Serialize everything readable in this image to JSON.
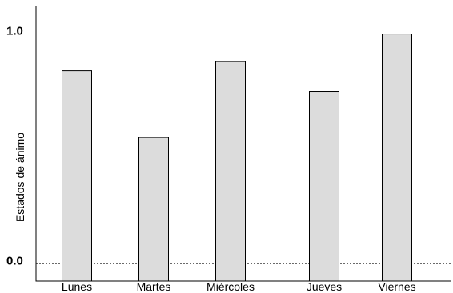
{
  "chart_data": {
    "type": "bar",
    "categories": [
      "Lunes",
      "Martes",
      "Miércoles",
      "Jueves",
      "Viernes"
    ],
    "values": [
      0.84,
      0.55,
      0.88,
      0.75,
      1.0
    ],
    "ylabel": "Estados de ánimo",
    "xlabel": "",
    "ylim": [
      -0.075,
      1.12
    ],
    "bar_baseline": -0.075,
    "yticks": [
      {
        "value": 0.0,
        "label": "0.0"
      },
      {
        "value": 1.0,
        "label": "1.0"
      }
    ],
    "reference_lines": [
      0.0,
      1.0
    ],
    "grid": false,
    "bar_color": "#dcdcdc",
    "bar_edge_color": "#000000",
    "reference_line_color": "#555555"
  }
}
